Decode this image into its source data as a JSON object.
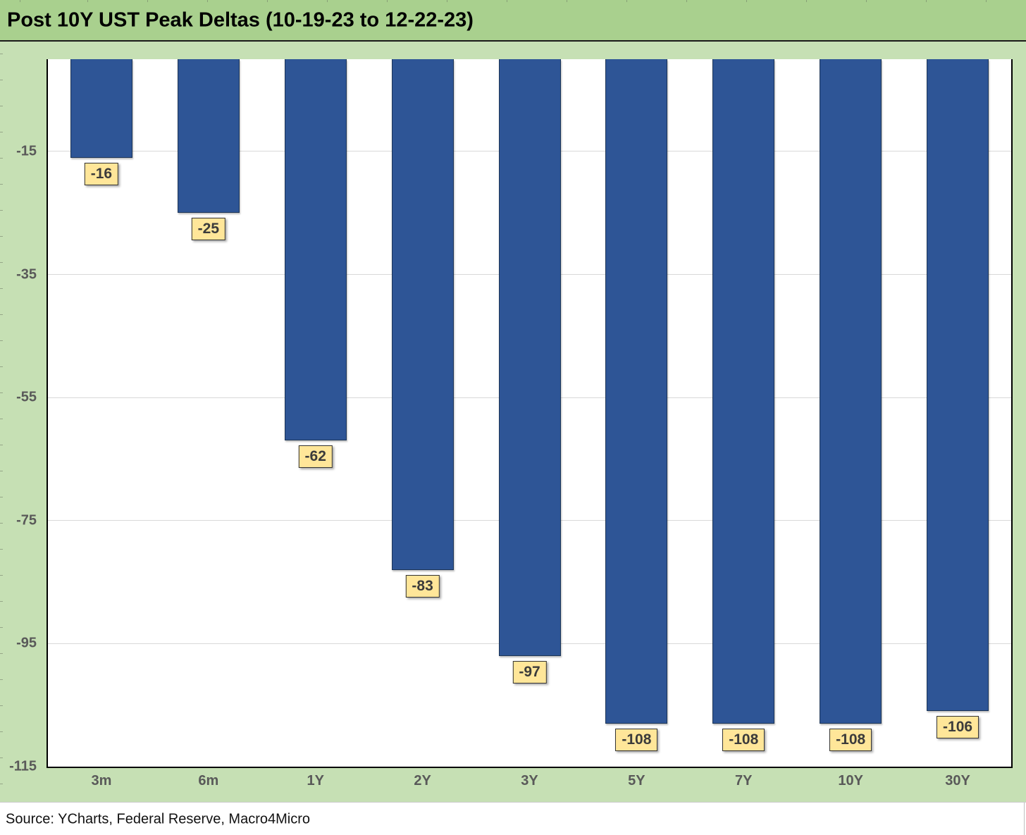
{
  "title": "Post 10Y UST Peak Deltas (10-19-23 to 12-22-23)",
  "source": "Source: YCharts, Federal Reserve, Macro4Micro",
  "colors": {
    "title_bar_green": "#a9d08e",
    "canvas_green": "#c6e0b4",
    "bar_blue": "#2e5596",
    "bar_border": "#1c3557",
    "label_fill_yellow": "#ffe699",
    "label_border": "#333333",
    "axis_text_gray": "#595959",
    "gridline_gray": "#d9d9d9"
  },
  "chart_data": {
    "type": "bar",
    "title": "Post 10Y UST Peak Deltas (10-19-23 to 12-22-23)",
    "categories": [
      "3m",
      "6m",
      "1Y",
      "2Y",
      "3Y",
      "5Y",
      "7Y",
      "10Y",
      "30Y"
    ],
    "values": [
      -16,
      -25,
      -62,
      -83,
      -97,
      -108,
      -108,
      -108,
      -106
    ],
    "data_labels": [
      "-16",
      "-25",
      "-62",
      "-83",
      "-97",
      "-108",
      "-108",
      "-108",
      "-106"
    ],
    "xlabel": "",
    "ylabel": "",
    "ylim": [
      -115,
      0
    ],
    "yticks": [
      -15,
      -35,
      -55,
      -75,
      -95,
      -115
    ],
    "grid": true,
    "legend": false,
    "orientation": "vertical-negative",
    "source_note": "Source: YCharts, Federal Reserve, Macro4Micro"
  }
}
